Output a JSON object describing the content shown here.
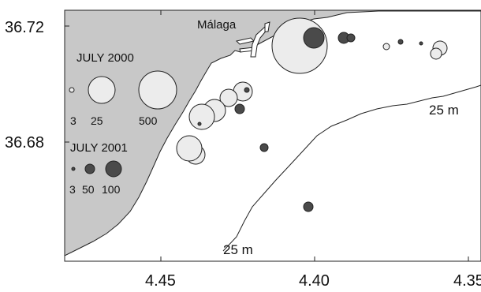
{
  "map": {
    "place_label": "Málaga",
    "contour_label_upper": "25 m",
    "contour_label_lower": "25 m",
    "colors": {
      "land": "#c8c8c8",
      "sea": "#ffffff",
      "july_2000_fill": "#ececec",
      "july_2001_fill": "#4a4a4a",
      "outline": "#222222"
    },
    "y_ticks": [
      "36.72",
      "36.68"
    ],
    "x_ticks": [
      "4.45",
      "4.40",
      "4.35"
    ],
    "legend": {
      "july_2000": {
        "title": "JULY 2000",
        "values": [
          "3",
          "25",
          "500"
        ]
      },
      "july_2001": {
        "title": "JULY 2001",
        "values": [
          "3",
          "50",
          "100"
        ]
      }
    }
  }
}
